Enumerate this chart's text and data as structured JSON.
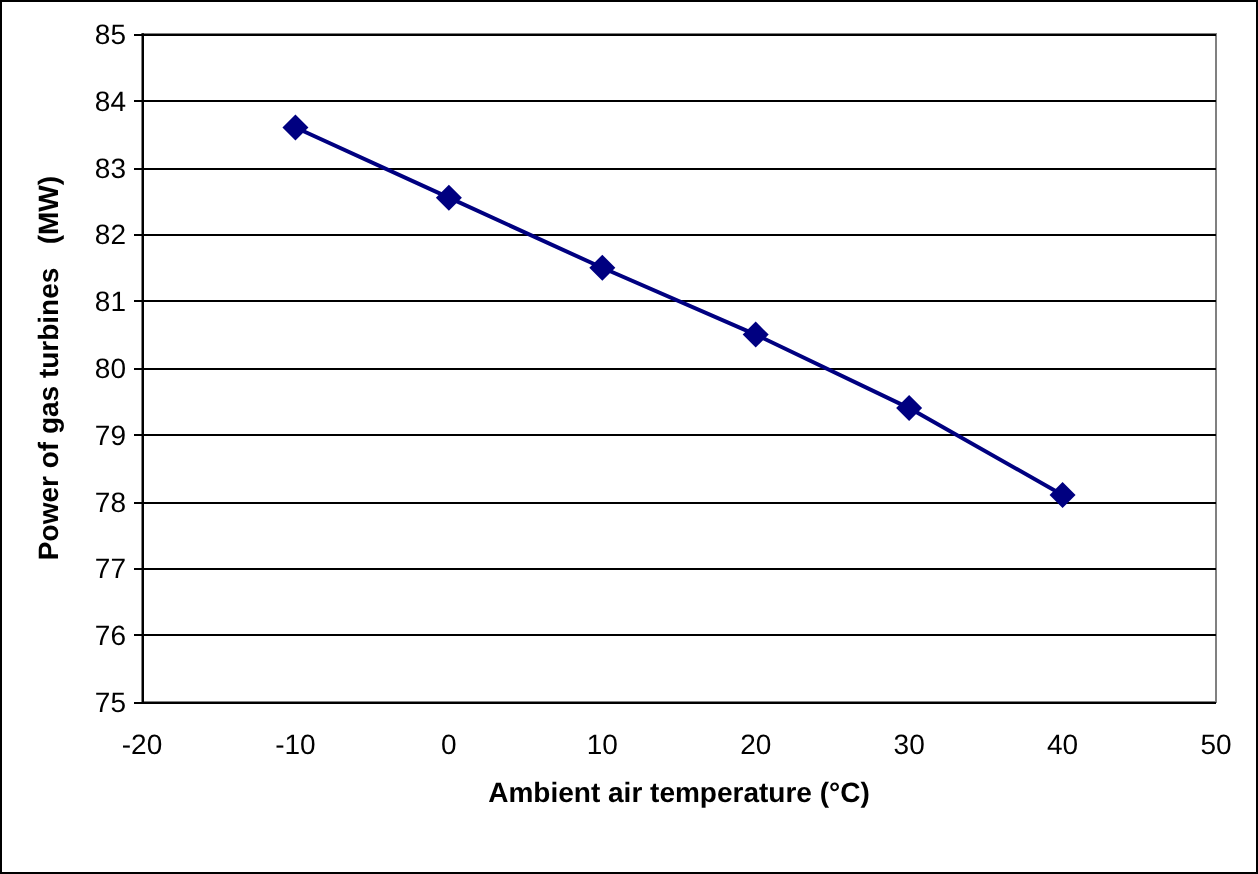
{
  "chart_data": {
    "type": "line",
    "xlabel": "Ambient air temperature (°C)",
    "ylabel": "Power of gas turbines   (MW)",
    "x": [
      -10,
      0,
      10,
      20,
      30,
      40
    ],
    "series": [
      {
        "color": "#000080",
        "values": [
          83.6,
          82.55,
          81.5,
          80.5,
          79.4,
          78.1
        ]
      }
    ],
    "xlim": [
      -20,
      50
    ],
    "xticks": [
      -20,
      -10,
      0,
      10,
      20,
      30,
      40,
      50
    ],
    "ylim": [
      75,
      85
    ],
    "yticks": [
      75,
      76,
      77,
      78,
      79,
      80,
      81,
      82,
      83,
      84,
      85
    ],
    "grid": "y",
    "marker": "diamond",
    "line_style": "solid"
  }
}
